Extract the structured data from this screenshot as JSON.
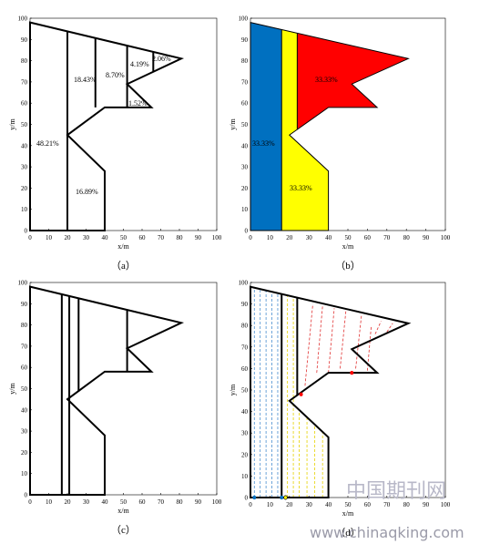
{
  "panels": [
    {
      "caption": "（a）",
      "x_label": "x/m",
      "y_label": "y/m",
      "xlim": [
        0,
        100
      ],
      "ylim": [
        0,
        100
      ],
      "xticks": [
        0,
        10,
        20,
        30,
        40,
        50,
        60,
        70,
        80,
        90,
        100
      ],
      "yticks": [
        0,
        10,
        20,
        30,
        40,
        50,
        60,
        70,
        80,
        90,
        100
      ],
      "region_labels": [
        "48.21%",
        "18.43%",
        "8.70%",
        "4.19%",
        "2.06%",
        "1.52%",
        "16.89%"
      ]
    },
    {
      "caption": "（b）",
      "x_label": "x/m",
      "y_label": "y/m",
      "xlim": [
        0,
        100
      ],
      "ylim": [
        0,
        100
      ],
      "xticks": [
        0,
        10,
        20,
        30,
        40,
        50,
        60,
        70,
        80,
        90,
        100
      ],
      "yticks": [
        0,
        10,
        20,
        30,
        40,
        50,
        60,
        70,
        80,
        90,
        100
      ],
      "region_labels": [
        "33.33%",
        "33.33%",
        "33.33%"
      ]
    },
    {
      "caption": "（c）",
      "x_label": "x/m",
      "y_label": "y/m",
      "xlim": [
        0,
        100
      ],
      "ylim": [
        0,
        100
      ],
      "xticks": [
        0,
        10,
        20,
        30,
        40,
        50,
        60,
        70,
        80,
        90,
        100
      ],
      "yticks": [
        0,
        10,
        20,
        30,
        40,
        50,
        60,
        70,
        80,
        90,
        100
      ],
      "region_labels": []
    },
    {
      "caption": "（d）",
      "x_label": "x/m",
      "y_label": "y/m",
      "xlim": [
        0,
        100
      ],
      "ylim": [
        0,
        100
      ],
      "xticks": [
        0,
        10,
        20,
        30,
        40,
        50,
        60,
        70,
        80,
        90,
        100
      ],
      "yticks": [
        0,
        10,
        20,
        30,
        40,
        50,
        60,
        70,
        80,
        90,
        100
      ],
      "region_labels": []
    }
  ],
  "watermark": {
    "logo": "中国期刊网",
    "url": "www.chinaqking.com"
  }
}
